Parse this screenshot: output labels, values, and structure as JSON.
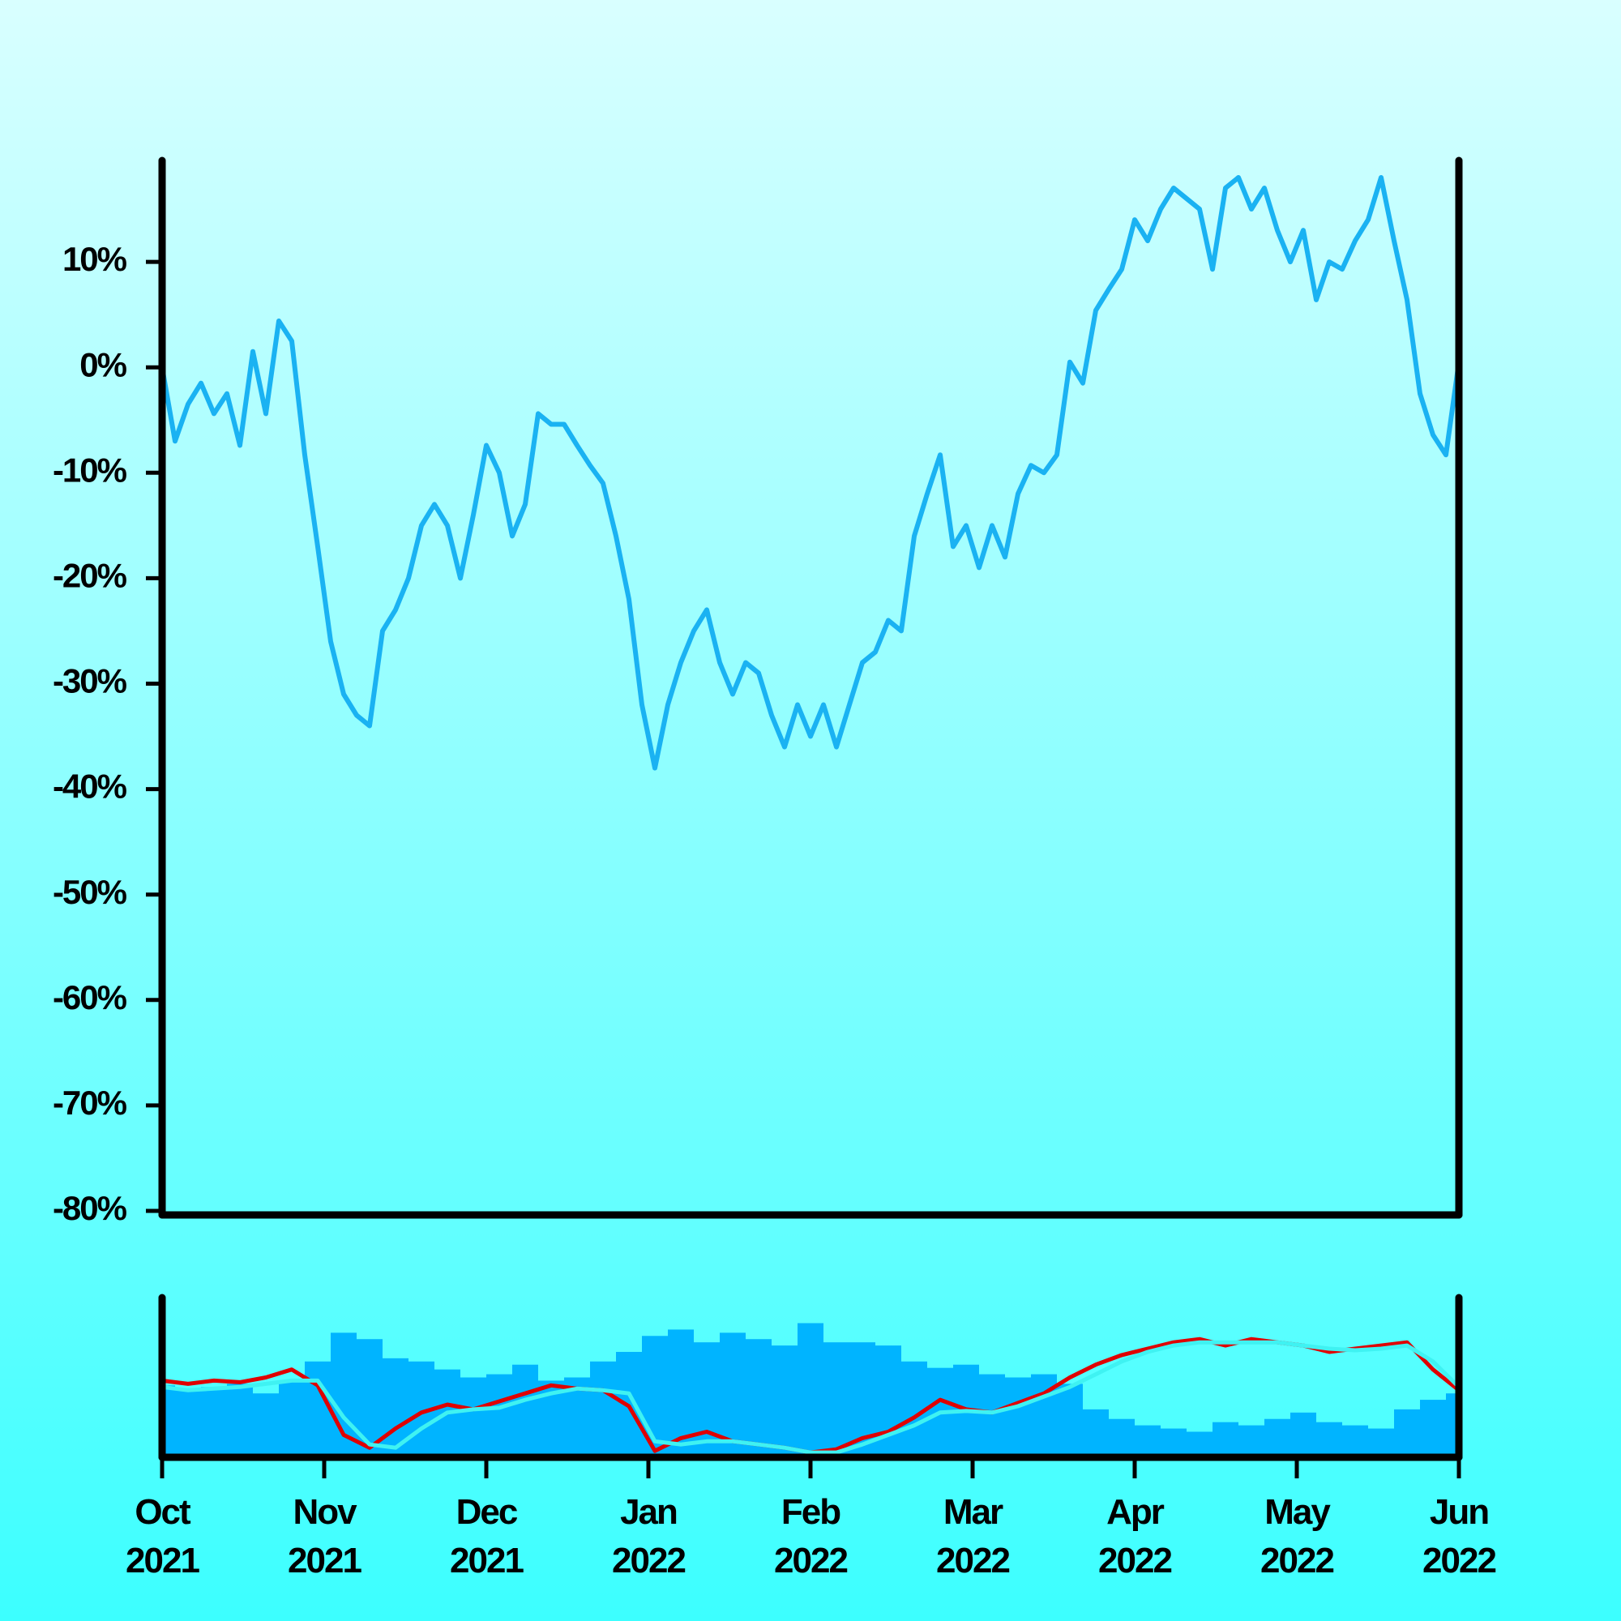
{
  "chart_data": [
    {
      "type": "line",
      "color": "#1ab2f2",
      "xlim": [
        0,
        8
      ],
      "ylim": [
        -80,
        20
      ],
      "yticks": [
        {
          "value": 10,
          "label": "10%"
        },
        {
          "value": 0,
          "label": "0%"
        },
        {
          "value": -10,
          "label": "-10%"
        },
        {
          "value": -20,
          "label": "-20%"
        },
        {
          "value": -30,
          "label": "-30%"
        },
        {
          "value": -40,
          "label": "-40%"
        },
        {
          "value": -50,
          "label": "-50%"
        },
        {
          "value": -60,
          "label": "-60%"
        },
        {
          "value": -70,
          "label": "-70%"
        },
        {
          "value": -80,
          "label": "-80%"
        }
      ],
      "x": [
        0,
        0.08,
        0.16,
        0.24,
        0.32,
        0.4,
        0.48,
        0.56,
        0.64,
        0.72,
        0.8,
        0.88,
        0.96,
        1.04,
        1.12,
        1.2,
        1.28,
        1.36,
        1.44,
        1.52,
        1.6,
        1.68,
        1.76,
        1.84,
        1.92,
        2,
        2.08,
        2.16,
        2.24,
        2.32,
        2.4,
        2.48,
        2.56,
        2.64,
        2.72,
        2.8,
        2.88,
        2.96,
        3.04,
        3.12,
        3.2,
        3.28,
        3.36,
        3.44,
        3.52,
        3.6,
        3.68,
        3.76,
        3.84,
        3.92,
        4,
        4.08,
        4.16,
        4.24,
        4.32,
        4.4,
        4.48,
        4.56,
        4.64,
        4.72,
        4.8,
        4.88,
        4.96,
        5.04,
        5.12,
        5.2,
        5.28,
        5.36,
        5.44,
        5.52,
        5.6,
        5.68,
        5.76,
        5.84,
        5.92,
        6,
        6.08,
        6.16,
        6.24,
        6.32,
        6.4,
        6.48,
        6.56,
        6.64,
        6.72,
        6.8,
        6.88,
        6.96,
        7.04,
        7.12,
        7.2,
        7.28,
        7.36,
        7.44,
        7.52,
        7.6,
        7.68,
        7.76,
        7.84,
        7.92,
        8
      ],
      "values": [
        0,
        -7,
        -3.5,
        -1.5,
        -4.4,
        -2.5,
        -7.4,
        1.5,
        -4.4,
        4.4,
        2.5,
        -8.3,
        -17,
        -26,
        -31,
        -33,
        -34,
        -25,
        -23,
        -20,
        -15,
        -13,
        -15,
        -20,
        -14,
        -7.4,
        -10,
        -16,
        -13,
        -4.4,
        -5.4,
        -5.4,
        -7.4,
        -9.3,
        -11,
        -16,
        -22,
        -32,
        -38,
        -32,
        -28,
        -25,
        -23,
        -28,
        -31,
        -28,
        -29,
        -33,
        -36,
        -32,
        -35,
        -32,
        -36,
        -32,
        -28,
        -27,
        -24,
        -25,
        -16,
        -12,
        -8.3,
        -17,
        -15,
        -19,
        -15,
        -18,
        -12,
        -9.3,
        -10,
        -8.3,
        0.5,
        -1.5,
        5.4,
        7.4,
        9.3,
        14,
        12,
        15,
        17,
        16,
        15,
        9.3,
        17,
        18,
        15,
        17,
        13,
        10,
        13,
        6.4,
        10,
        9.3,
        12,
        14,
        18,
        12,
        6.4,
        -2.5,
        -6.4,
        -8.3,
        0.5
      ]
    },
    {
      "type": "bar",
      "xlim": [
        0,
        8
      ],
      "ylim": [
        0,
        100
      ],
      "xticks": [
        {
          "value": 0,
          "label": "Oct\n2021"
        },
        {
          "value": 1,
          "label": "Nov\n2021"
        },
        {
          "value": 2,
          "label": "Dec\n2021"
        },
        {
          "value": 3,
          "label": "Jan\n2022"
        },
        {
          "value": 4,
          "label": "Feb\n2022"
        },
        {
          "value": 5,
          "label": "Mar\n2022"
        },
        {
          "value": 6,
          "label": "Apr\n2022"
        },
        {
          "value": 7,
          "label": "May\n2022"
        },
        {
          "value": 8,
          "label": "Jun\n2022"
        }
      ],
      "x": [
        0,
        0.16,
        0.32,
        0.48,
        0.64,
        0.8,
        0.96,
        1.12,
        1.28,
        1.44,
        1.6,
        1.76,
        1.92,
        2.08,
        2.24,
        2.4,
        2.56,
        2.72,
        2.88,
        3.04,
        3.2,
        3.36,
        3.52,
        3.68,
        3.84,
        4,
        4.16,
        4.32,
        4.48,
        4.64,
        4.8,
        4.96,
        5.12,
        5.28,
        5.44,
        5.6,
        5.76,
        5.92,
        6.08,
        6.24,
        6.4,
        6.56,
        6.72,
        6.88,
        7.04,
        7.2,
        7.36,
        7.52,
        7.68,
        7.84,
        8
      ],
      "series": [
        {
          "type": "bar",
          "color": "#00b4ff",
          "values": [
            45,
            42,
            44,
            46,
            40,
            48,
            60,
            78,
            74,
            62,
            60,
            55,
            50,
            52,
            58,
            48,
            50,
            60,
            66,
            76,
            80,
            72,
            78,
            74,
            70,
            84,
            72,
            72,
            70,
            60,
            56,
            58,
            52,
            50,
            52,
            46,
            30,
            24,
            20,
            18,
            16,
            22,
            20,
            24,
            28,
            22,
            20,
            18,
            30,
            36,
            40
          ]
        },
        {
          "type": "line",
          "color": "#e00000",
          "values": [
            48,
            46,
            48,
            47,
            50,
            55,
            45,
            14,
            6,
            18,
            28,
            33,
            30,
            35,
            40,
            45,
            43,
            42,
            32,
            4,
            12,
            16,
            10,
            8,
            6,
            3,
            5,
            12,
            16,
            25,
            36,
            30,
            28,
            34,
            40,
            50,
            58,
            64,
            68,
            72,
            74,
            70,
            74,
            72,
            70,
            66,
            68,
            70,
            72,
            55,
            42
          ]
        },
        {
          "type": "line",
          "color": "#3ff2f2",
          "values": [
            44,
            42,
            43,
            44,
            46,
            48,
            48,
            25,
            8,
            6,
            18,
            28,
            30,
            31,
            36,
            40,
            43,
            42,
            40,
            10,
            8,
            10,
            10,
            8,
            6,
            3,
            3,
            8,
            14,
            20,
            28,
            29,
            28,
            32,
            38,
            44,
            52,
            60,
            66,
            70,
            72,
            72,
            72,
            72,
            70,
            68,
            67,
            68,
            70,
            60,
            44
          ]
        }
      ]
    }
  ]
}
